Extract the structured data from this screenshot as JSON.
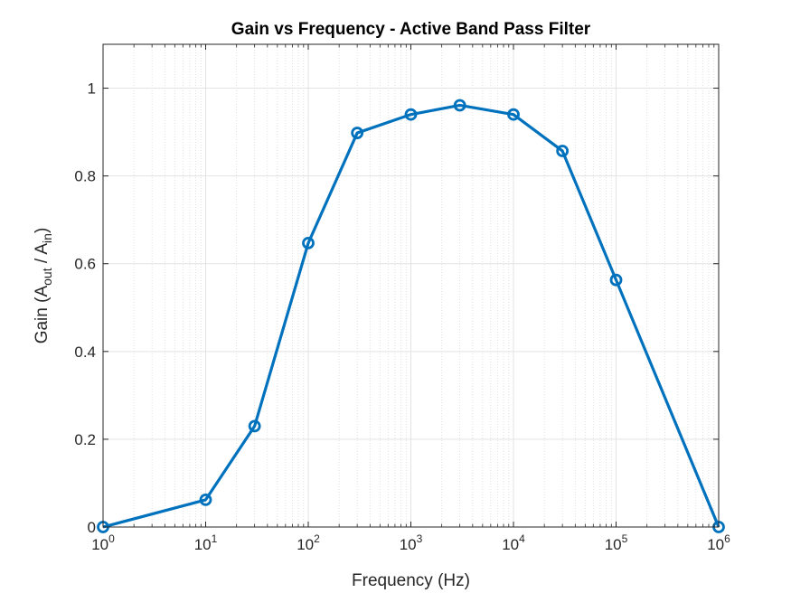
{
  "chart_data": {
    "type": "line",
    "title": "Gain vs Frequency - Active Band Pass Filter",
    "xlabel": "Frequency (Hz)",
    "ylabel": {
      "prefix": "Gain (A",
      "sub1": "out",
      "middle": " / A",
      "sub2": "in",
      "suffix": ")"
    },
    "xscale": "log",
    "xlim": [
      1,
      1000000
    ],
    "ylim": [
      0,
      1.1
    ],
    "grid": true,
    "minor_grid": true,
    "x_tick_labels": [
      {
        "base": "10",
        "exp": "0"
      },
      {
        "base": "10",
        "exp": "1"
      },
      {
        "base": "10",
        "exp": "2"
      },
      {
        "base": "10",
        "exp": "3"
      },
      {
        "base": "10",
        "exp": "4"
      },
      {
        "base": "10",
        "exp": "5"
      },
      {
        "base": "10",
        "exp": "6"
      }
    ],
    "y_ticks": [
      0,
      0.2,
      0.4,
      0.6,
      0.8,
      1
    ],
    "y_tick_labels": [
      "0",
      "0.2",
      "0.4",
      "0.6",
      "0.8",
      "1"
    ],
    "line_color": "#0072BD",
    "marker": "circle",
    "series": [
      {
        "x": [
          1,
          10,
          30,
          100,
          300,
          1000,
          3000,
          10000,
          30000,
          100000,
          1000000
        ],
        "y": [
          0,
          0.062,
          0.23,
          0.647,
          0.898,
          0.94,
          0.961,
          0.94,
          0.857,
          0.563,
          0
        ]
      }
    ]
  }
}
